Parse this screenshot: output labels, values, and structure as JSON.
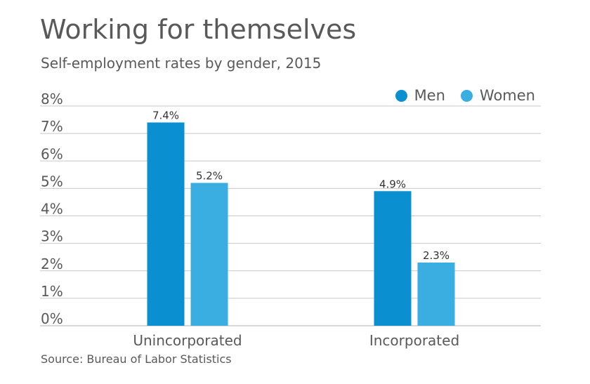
{
  "title": "Working for themselves",
  "subtitle": "Self-employment rates by gender, 2015",
  "source": "Source: Bureau of Labor Statistics",
  "colors": {
    "men": "#0a90d0",
    "women": "#3aaee0",
    "grid": "#c8c8c8",
    "text": "#595959",
    "label": "#333333"
  },
  "chart_data": {
    "type": "bar",
    "title": "Working for themselves",
    "subtitle": "Self-employment rates by gender, 2015",
    "categories": [
      "Unincorporated",
      "Incorporated"
    ],
    "series": [
      {
        "name": "Men",
        "values": [
          7.4,
          4.9
        ],
        "labels": [
          "7.4%",
          "4.9%"
        ]
      },
      {
        "name": "Women",
        "values": [
          5.2,
          2.3
        ],
        "labels": [
          "5.2%",
          "2.3%"
        ]
      }
    ],
    "ylim": [
      0,
      8
    ],
    "yticks": [
      0,
      1,
      2,
      3,
      4,
      5,
      6,
      7,
      8
    ],
    "ytick_labels": [
      "0%",
      "1%",
      "2%",
      "3%",
      "4%",
      "5%",
      "6%",
      "7%",
      "8%"
    ],
    "grid": true,
    "legend": "top-right"
  }
}
